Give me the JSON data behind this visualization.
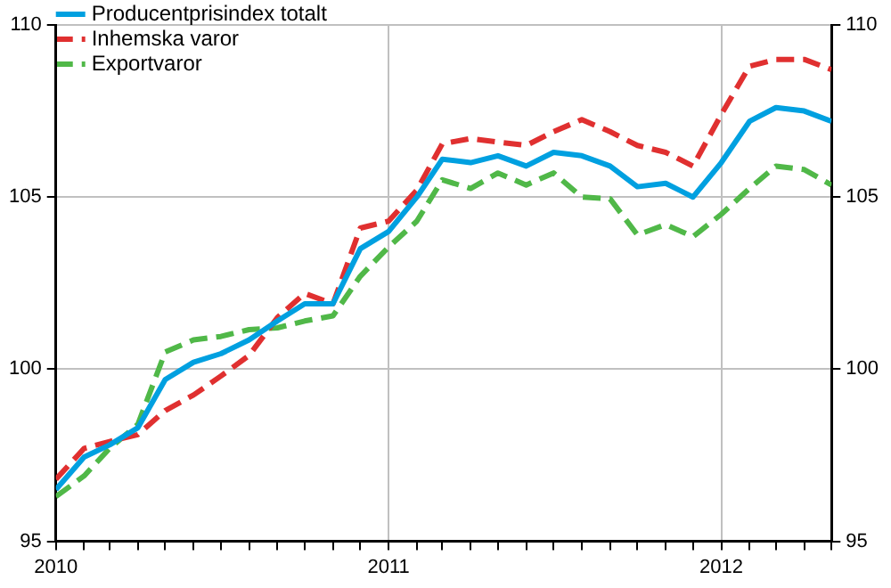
{
  "chart_data": {
    "type": "line",
    "x": [
      "2010-01",
      "2010-02",
      "2010-03",
      "2010-04",
      "2010-05",
      "2010-06",
      "2010-07",
      "2010-08",
      "2010-09",
      "2010-10",
      "2010-11",
      "2010-12",
      "2011-01",
      "2011-02",
      "2011-03",
      "2011-04",
      "2011-05",
      "2011-06",
      "2011-07",
      "2011-08",
      "2011-09",
      "2011-10",
      "2011-11",
      "2011-12",
      "2012-01",
      "2012-02",
      "2012-03",
      "2012-04",
      "2012-05"
    ],
    "series": [
      {
        "name": "Producentprisindex totalt",
        "color": "#00a0e0",
        "line_style": "solid",
        "values": [
          96.5,
          97.45,
          97.8,
          98.3,
          99.7,
          100.2,
          100.45,
          100.85,
          101.4,
          101.9,
          101.9,
          103.5,
          104.0,
          105.0,
          106.1,
          106.0,
          106.2,
          105.9,
          106.3,
          106.2,
          105.9,
          105.3,
          105.4,
          105.0,
          106.0,
          107.2,
          107.6,
          107.5,
          107.2
        ]
      },
      {
        "name": "Inhemska varor",
        "color": "#e03030",
        "line_style": "dashed",
        "values": [
          96.8,
          97.7,
          97.9,
          98.1,
          98.8,
          99.25,
          99.8,
          100.4,
          101.5,
          102.2,
          101.9,
          104.1,
          104.3,
          105.2,
          106.55,
          106.7,
          106.6,
          106.5,
          106.9,
          107.25,
          106.9,
          106.5,
          106.3,
          105.9,
          107.4,
          108.8,
          109.0,
          109.0,
          108.7
        ]
      },
      {
        "name": "Exportvaror",
        "color": "#50b848",
        "line_style": "dashed",
        "values": [
          96.3,
          96.9,
          97.7,
          98.4,
          100.5,
          100.85,
          100.95,
          101.15,
          101.2,
          101.4,
          101.55,
          102.7,
          103.55,
          104.3,
          105.5,
          105.25,
          105.7,
          105.35,
          105.7,
          105.0,
          104.95,
          103.9,
          104.2,
          103.85,
          104.5,
          105.25,
          105.9,
          105.8,
          105.35
        ]
      }
    ],
    "xlim": [
      "2010-01",
      "2012-05"
    ],
    "xticks": [
      {
        "value": "2010-01",
        "label": "2010"
      },
      {
        "value": "2010-02",
        "label": null
      },
      {
        "value": "2010-03",
        "label": null
      },
      {
        "value": "2010-04",
        "label": null
      },
      {
        "value": "2010-05",
        "label": null
      },
      {
        "value": "2010-06",
        "label": null
      },
      {
        "value": "2010-07",
        "label": null
      },
      {
        "value": "2010-08",
        "label": null
      },
      {
        "value": "2010-09",
        "label": null
      },
      {
        "value": "2010-10",
        "label": null
      },
      {
        "value": "2010-11",
        "label": null
      },
      {
        "value": "2010-12",
        "label": null
      },
      {
        "value": "2011-01",
        "label": "2011"
      },
      {
        "value": "2011-02",
        "label": null
      },
      {
        "value": "2011-03",
        "label": null
      },
      {
        "value": "2011-04",
        "label": null
      },
      {
        "value": "2011-05",
        "label": null
      },
      {
        "value": "2011-06",
        "label": null
      },
      {
        "value": "2011-07",
        "label": null
      },
      {
        "value": "2011-08",
        "label": null
      },
      {
        "value": "2011-09",
        "label": null
      },
      {
        "value": "2011-10",
        "label": null
      },
      {
        "value": "2011-11",
        "label": null
      },
      {
        "value": "2011-12",
        "label": null
      },
      {
        "value": "2012-01",
        "label": "2012"
      },
      {
        "value": "2012-02",
        "label": null
      },
      {
        "value": "2012-03",
        "label": null
      },
      {
        "value": "2012-04",
        "label": null
      },
      {
        "value": "2012-05",
        "label": null
      }
    ],
    "ylim": [
      95,
      110
    ],
    "yticks": [
      95,
      100,
      105,
      110
    ],
    "y2lim": [
      95,
      110
    ],
    "y2ticks": [
      95,
      100,
      105,
      110
    ],
    "grid": true,
    "legend": "top left",
    "marker": "none"
  }
}
